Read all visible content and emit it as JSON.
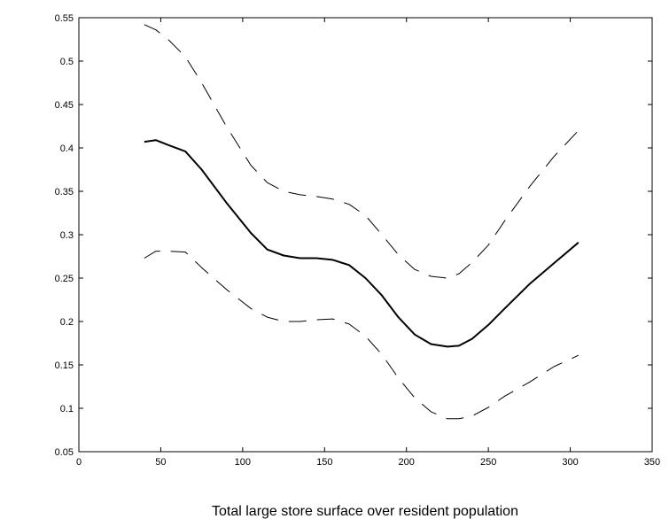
{
  "chart_data": {
    "type": "line",
    "title": "",
    "xlabel": "Total large store surface over resident population",
    "ylabel": "",
    "xlim": [
      0,
      350
    ],
    "ylim": [
      0.05,
      0.55
    ],
    "xticks": [
      "0",
      "50",
      "100",
      "150",
      "200",
      "250",
      "300",
      "350"
    ],
    "yticks": [
      "0.05",
      "0.1",
      "0.15",
      "0.2",
      "0.25",
      "0.3",
      "0.35",
      "0.4",
      "0.45",
      "0.5",
      "0.55"
    ],
    "x_tick_values": [
      0,
      50,
      100,
      150,
      200,
      250,
      300,
      350
    ],
    "y_tick_values": [
      0.05,
      0.1,
      0.15,
      0.2,
      0.25,
      0.3,
      0.35,
      0.4,
      0.45,
      0.5,
      0.55
    ],
    "grid": false,
    "series": [
      {
        "style": "solid",
        "color": "#000000",
        "x": [
          40,
          47,
          55,
          65,
          75,
          90,
          105,
          115,
          125,
          135,
          145,
          155,
          165,
          175,
          185,
          195,
          205,
          215,
          225,
          232,
          240,
          250,
          260,
          275,
          290,
          305
        ],
        "y": [
          0.407,
          0.409,
          0.403,
          0.396,
          0.375,
          0.337,
          0.302,
          0.283,
          0.276,
          0.273,
          0.273,
          0.271,
          0.265,
          0.25,
          0.23,
          0.205,
          0.185,
          0.174,
          0.171,
          0.172,
          0.18,
          0.196,
          0.215,
          0.243,
          0.267,
          0.291
        ]
      },
      {
        "style": "dashed",
        "color": "#000000",
        "x": [
          40,
          47,
          55,
          65,
          75,
          90,
          105,
          115,
          125,
          135,
          145,
          155,
          165,
          175,
          185,
          195,
          205,
          215,
          225,
          232,
          240,
          250,
          260,
          275,
          290,
          305
        ],
        "y": [
          0.542,
          0.536,
          0.524,
          0.505,
          0.475,
          0.425,
          0.38,
          0.36,
          0.35,
          0.346,
          0.344,
          0.341,
          0.335,
          0.322,
          0.3,
          0.277,
          0.26,
          0.252,
          0.25,
          0.255,
          0.268,
          0.288,
          0.316,
          0.355,
          0.39,
          0.42
        ]
      },
      {
        "style": "dashed",
        "color": "#000000",
        "x": [
          40,
          47,
          55,
          65,
          75,
          90,
          105,
          115,
          125,
          135,
          145,
          155,
          165,
          175,
          185,
          195,
          205,
          215,
          225,
          232,
          240,
          250,
          260,
          275,
          290,
          305
        ],
        "y": [
          0.273,
          0.281,
          0.281,
          0.28,
          0.262,
          0.237,
          0.215,
          0.205,
          0.2,
          0.2,
          0.202,
          0.203,
          0.197,
          0.183,
          0.162,
          0.135,
          0.112,
          0.096,
          0.088,
          0.088,
          0.091,
          0.101,
          0.114,
          0.13,
          0.148,
          0.161
        ]
      }
    ]
  }
}
